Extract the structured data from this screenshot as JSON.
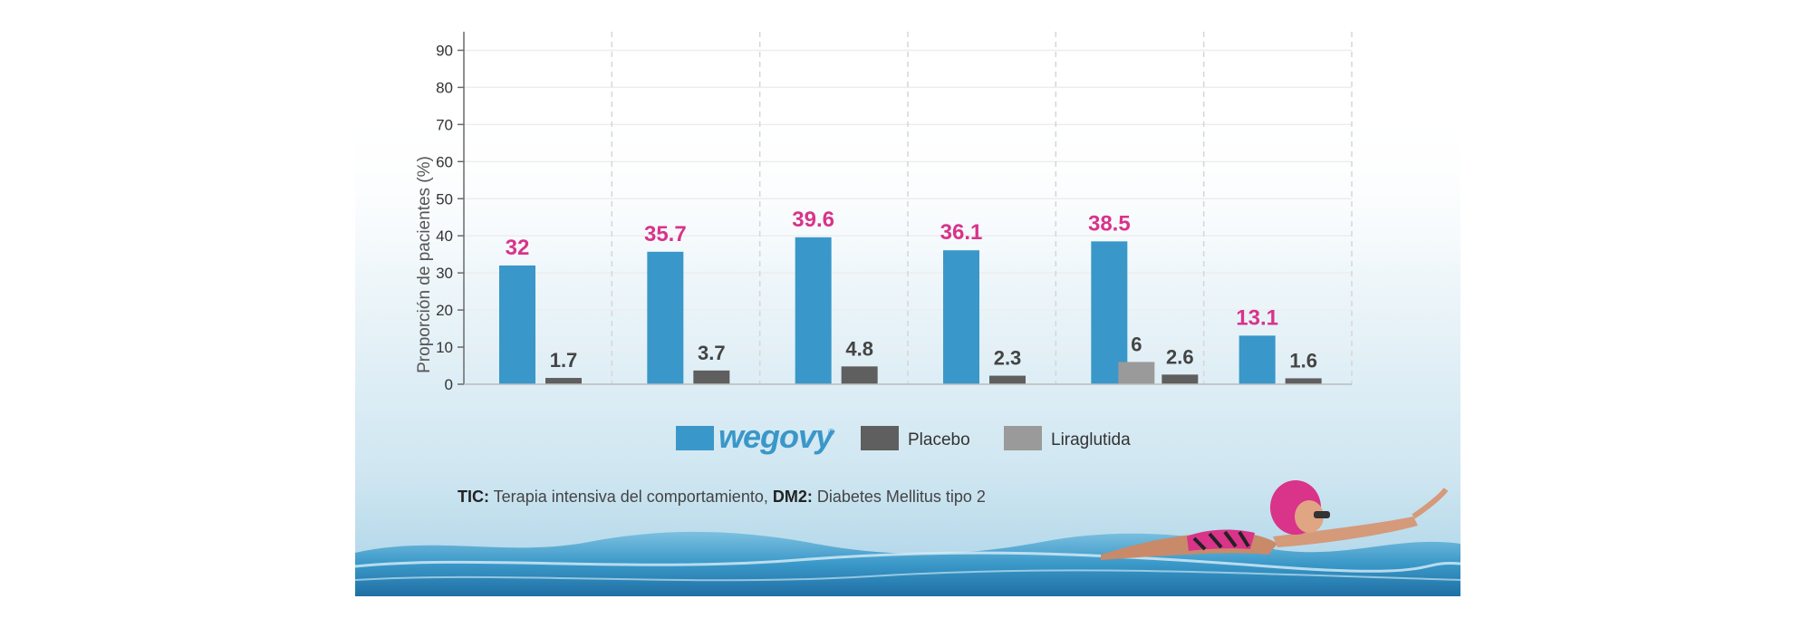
{
  "chart_data": {
    "type": "bar",
    "title": "",
    "xlabel": "",
    "ylabel": "Proporción de pacientes (%)",
    "ylim": [
      0,
      95
    ],
    "yticks": [
      0,
      10,
      20,
      30,
      40,
      50,
      60,
      70,
      80,
      90
    ],
    "grid": true,
    "legend_placement": "bottom",
    "categories": [
      "",
      "",
      "",
      "",
      "",
      ""
    ],
    "series": [
      {
        "name": "wegovy",
        "color": "#3a97c9",
        "label_color": "#d9338a",
        "values": [
          32,
          35.7,
          39.6,
          36.1,
          38.5,
          13.1
        ]
      },
      {
        "name": "Liraglutida",
        "color": "#9a9a9a",
        "label_color": "#444444",
        "values": [
          null,
          null,
          null,
          null,
          6,
          null
        ]
      },
      {
        "name": "Placebo",
        "color": "#5f5f5f",
        "label_color": "#444444",
        "values": [
          1.7,
          3.7,
          4.8,
          2.3,
          2.6,
          1.6
        ]
      }
    ]
  },
  "legend": {
    "items": [
      {
        "name": "wegovy",
        "label": "wegovy",
        "color": "#3a97c9",
        "brand": true
      },
      {
        "name": "Placebo",
        "label": "Placebo",
        "color": "#5f5f5f"
      },
      {
        "name": "Liraglutida",
        "label": "Liraglutida",
        "color": "#9a9a9a"
      }
    ]
  },
  "footnote": {
    "tic_abbr": "TIC:",
    "tic_text": " Terapia intensiva del comportamiento, ",
    "dm2_abbr": "DM2:",
    "dm2_text": " Diabetes Mellitus tipo 2"
  },
  "colors": {
    "water_top": "#e6f2f8",
    "water_mid": "#9fd0e6",
    "water_deep": "#2f8fc0",
    "grid": "#d6d6d6",
    "axis": "#6a6a6a"
  },
  "icons": {
    "decoration": "swimmer-illustration"
  }
}
